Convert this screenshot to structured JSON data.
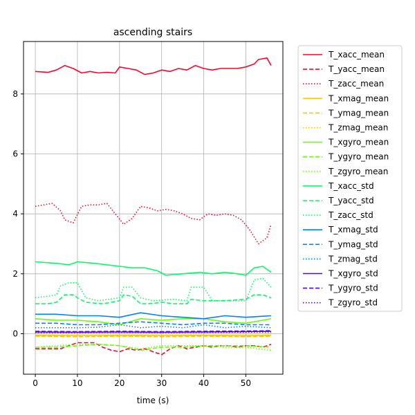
{
  "chart_data": {
    "type": "line",
    "title": "ascending stairs",
    "xlabel": "time (s)",
    "ylabel": "",
    "xlim": [
      -2.8,
      58.8
    ],
    "ylim": [
      -1.35,
      9.75
    ],
    "xticks": [
      0,
      10,
      20,
      30,
      40,
      50
    ],
    "yticks": [
      0,
      2,
      4,
      6,
      8
    ],
    "grid": true,
    "legend_position": "outside-right",
    "series": [
      {
        "name": "T_xacc_mean",
        "color": "#ff0029",
        "dash": "solid",
        "x": [
          0,
          3,
          5,
          7,
          9,
          11,
          13,
          15,
          17,
          19,
          20,
          22,
          24,
          26,
          28,
          30,
          32,
          34,
          36,
          38,
          40,
          42,
          44,
          46,
          48,
          50,
          52,
          53,
          55,
          56
        ],
        "y": [
          8.75,
          8.72,
          8.8,
          8.95,
          8.85,
          8.7,
          8.75,
          8.7,
          8.72,
          8.7,
          8.9,
          8.85,
          8.8,
          8.65,
          8.7,
          8.8,
          8.75,
          8.85,
          8.8,
          8.95,
          8.85,
          8.8,
          8.85,
          8.85,
          8.85,
          8.9,
          9.0,
          9.15,
          9.2,
          8.95
        ]
      },
      {
        "name": "T_yacc_mean",
        "color": "#ff0029",
        "dash": "dashed",
        "x": [
          0,
          2,
          4,
          6,
          8,
          10,
          12,
          14,
          16,
          18,
          20,
          22,
          24,
          26,
          28,
          30,
          32,
          34,
          36,
          38,
          40,
          42,
          44,
          46,
          48,
          50,
          52,
          54,
          56
        ],
        "y": [
          -0.5,
          -0.5,
          -0.5,
          -0.5,
          -0.4,
          -0.3,
          -0.3,
          -0.3,
          -0.45,
          -0.55,
          -0.6,
          -0.5,
          -0.55,
          -0.5,
          -0.6,
          -0.7,
          -0.5,
          -0.4,
          -0.5,
          -0.45,
          -0.4,
          -0.45,
          -0.4,
          -0.4,
          -0.45,
          -0.4,
          -0.4,
          -0.45,
          -0.35
        ]
      },
      {
        "name": "T_zacc_mean",
        "color": "#ff0029",
        "dash": "dotted",
        "x": [
          0,
          2,
          4,
          6,
          7,
          9,
          11,
          13,
          15,
          17,
          19,
          21,
          23,
          25,
          27,
          29,
          31,
          33,
          35,
          37,
          39,
          41,
          43,
          45,
          47,
          49,
          51,
          53,
          55,
          56
        ],
        "y": [
          4.25,
          4.3,
          4.35,
          4.1,
          3.8,
          3.7,
          4.25,
          4.3,
          4.3,
          4.35,
          4.0,
          3.65,
          3.85,
          4.25,
          4.2,
          4.1,
          4.15,
          4.1,
          4.0,
          3.85,
          3.8,
          4.0,
          3.95,
          4.0,
          3.95,
          3.8,
          3.45,
          3.0,
          3.2,
          3.65
        ]
      },
      {
        "name": "T_xmag_mean",
        "color": "#ffc300",
        "dash": "solid",
        "x": [
          0,
          10,
          20,
          30,
          40,
          50,
          56
        ],
        "y": [
          -0.05,
          -0.06,
          -0.05,
          -0.06,
          -0.05,
          -0.06,
          -0.05
        ]
      },
      {
        "name": "T_ymag_mean",
        "color": "#ffc300",
        "dash": "dashed",
        "x": [
          0,
          10,
          20,
          30,
          40,
          50,
          56
        ],
        "y": [
          -0.08,
          -0.1,
          -0.08,
          -0.1,
          -0.08,
          -0.1,
          -0.08
        ]
      },
      {
        "name": "T_zmag_mean",
        "color": "#ffc300",
        "dash": "dotted",
        "x": [
          0,
          10,
          20,
          30,
          40,
          50,
          56
        ],
        "y": [
          0.02,
          0.0,
          0.02,
          0.0,
          0.02,
          0.0,
          0.02
        ]
      },
      {
        "name": "T_xgyro_mean",
        "color": "#66ff00",
        "dash": "solid",
        "x": [
          0,
          5,
          10,
          15,
          20,
          25,
          30,
          35,
          40,
          45,
          50,
          56
        ],
        "y": [
          0.5,
          0.45,
          0.45,
          0.4,
          0.3,
          0.5,
          0.45,
          0.5,
          0.5,
          0.4,
          0.35,
          0.5
        ]
      },
      {
        "name": "T_ygyro_mean",
        "color": "#66ff00",
        "dash": "dashed",
        "x": [
          0,
          5,
          10,
          15,
          20,
          25,
          30,
          35,
          40,
          45,
          50,
          56
        ],
        "y": [
          -0.45,
          -0.45,
          -0.4,
          -0.35,
          -0.4,
          -0.55,
          -0.45,
          -0.45,
          -0.4,
          -0.4,
          -0.4,
          -0.45
        ]
      },
      {
        "name": "T_zgyro_mean",
        "color": "#66ff00",
        "dash": "dotted",
        "x": [
          0,
          5,
          10,
          15,
          20,
          25,
          30,
          35,
          40,
          45,
          50,
          56
        ],
        "y": [
          -0.45,
          -0.4,
          -0.35,
          -0.35,
          -0.4,
          -0.5,
          -0.4,
          -0.4,
          -0.4,
          -0.45,
          -0.45,
          -0.55
        ]
      },
      {
        "name": "T_xacc_std",
        "color": "#00ff66",
        "dash": "solid",
        "x": [
          0,
          5,
          8,
          10,
          14,
          17,
          20,
          23,
          26,
          29,
          31,
          35,
          39,
          42,
          45,
          48,
          50,
          52,
          54,
          56
        ],
        "y": [
          2.4,
          2.35,
          2.3,
          2.4,
          2.35,
          2.3,
          2.25,
          2.2,
          2.2,
          2.1,
          1.95,
          2.0,
          2.05,
          2.0,
          2.05,
          2.0,
          1.95,
          2.2,
          2.25,
          2.05
        ]
      },
      {
        "name": "T_yacc_std",
        "color": "#00ff66",
        "dash": "dashed",
        "x": [
          0,
          3,
          5,
          7,
          9,
          10,
          12,
          16,
          20,
          21,
          23,
          25,
          27,
          30,
          33,
          36,
          37,
          40,
          41,
          45,
          50,
          52,
          54,
          56
        ],
        "y": [
          1.0,
          1.0,
          1.05,
          1.3,
          1.3,
          1.2,
          1.05,
          1.0,
          1.1,
          1.3,
          1.25,
          1.0,
          1.0,
          1.05,
          1.0,
          1.0,
          1.15,
          1.1,
          1.1,
          1.1,
          1.15,
          1.3,
          1.3,
          1.2
        ]
      },
      {
        "name": "T_zacc_std",
        "color": "#00ff66",
        "dash": "dotted",
        "x": [
          0,
          3,
          5,
          6,
          8,
          10,
          12,
          15,
          20,
          21,
          23,
          25,
          28,
          33,
          36,
          37,
          40,
          42,
          45,
          50,
          52,
          54,
          56
        ],
        "y": [
          1.2,
          1.25,
          1.3,
          1.6,
          1.7,
          1.7,
          1.2,
          1.1,
          1.2,
          1.55,
          1.55,
          1.2,
          1.1,
          1.15,
          1.1,
          1.55,
          1.55,
          1.1,
          1.1,
          1.1,
          1.8,
          1.85,
          1.55
        ]
      },
      {
        "name": "T_xmag_std",
        "color": "#0080ff",
        "dash": "solid",
        "x": [
          0,
          5,
          10,
          15,
          20,
          25,
          30,
          35,
          40,
          45,
          50,
          56
        ],
        "y": [
          0.65,
          0.65,
          0.6,
          0.6,
          0.55,
          0.7,
          0.6,
          0.55,
          0.5,
          0.6,
          0.55,
          0.6
        ]
      },
      {
        "name": "T_ymag_std",
        "color": "#0080ff",
        "dash": "dashed",
        "x": [
          0,
          5,
          10,
          15,
          20,
          25,
          30,
          35,
          40,
          45,
          50,
          56
        ],
        "y": [
          0.35,
          0.35,
          0.3,
          0.3,
          0.35,
          0.4,
          0.35,
          0.3,
          0.35,
          0.35,
          0.3,
          0.3
        ]
      },
      {
        "name": "T_zmag_std",
        "color": "#0080ff",
        "dash": "dotted",
        "x": [
          0,
          5,
          10,
          15,
          20,
          25,
          30,
          35,
          40,
          45,
          50,
          56
        ],
        "y": [
          0.2,
          0.2,
          0.2,
          0.22,
          0.3,
          0.2,
          0.25,
          0.2,
          0.3,
          0.2,
          0.25,
          0.2
        ]
      },
      {
        "name": "T_xgyro_std",
        "color": "#5000ff",
        "dash": "solid",
        "x": [
          0,
          10,
          20,
          30,
          40,
          50,
          56
        ],
        "y": [
          0.06,
          0.05,
          0.06,
          0.05,
          0.06,
          0.07,
          0.08
        ]
      },
      {
        "name": "T_ygyro_std",
        "color": "#5000ff",
        "dash": "dashed",
        "x": [
          0,
          10,
          20,
          30,
          40,
          50,
          56
        ],
        "y": [
          0.08,
          0.07,
          0.08,
          0.07,
          0.08,
          0.09,
          0.1
        ]
      },
      {
        "name": "T_zgyro_std",
        "color": "#5000ff",
        "dash": "dotted",
        "x": [
          0,
          10,
          20,
          30,
          40,
          50,
          56
        ],
        "y": [
          0.04,
          0.04,
          0.05,
          0.04,
          0.05,
          0.05,
          0.06
        ]
      }
    ]
  }
}
